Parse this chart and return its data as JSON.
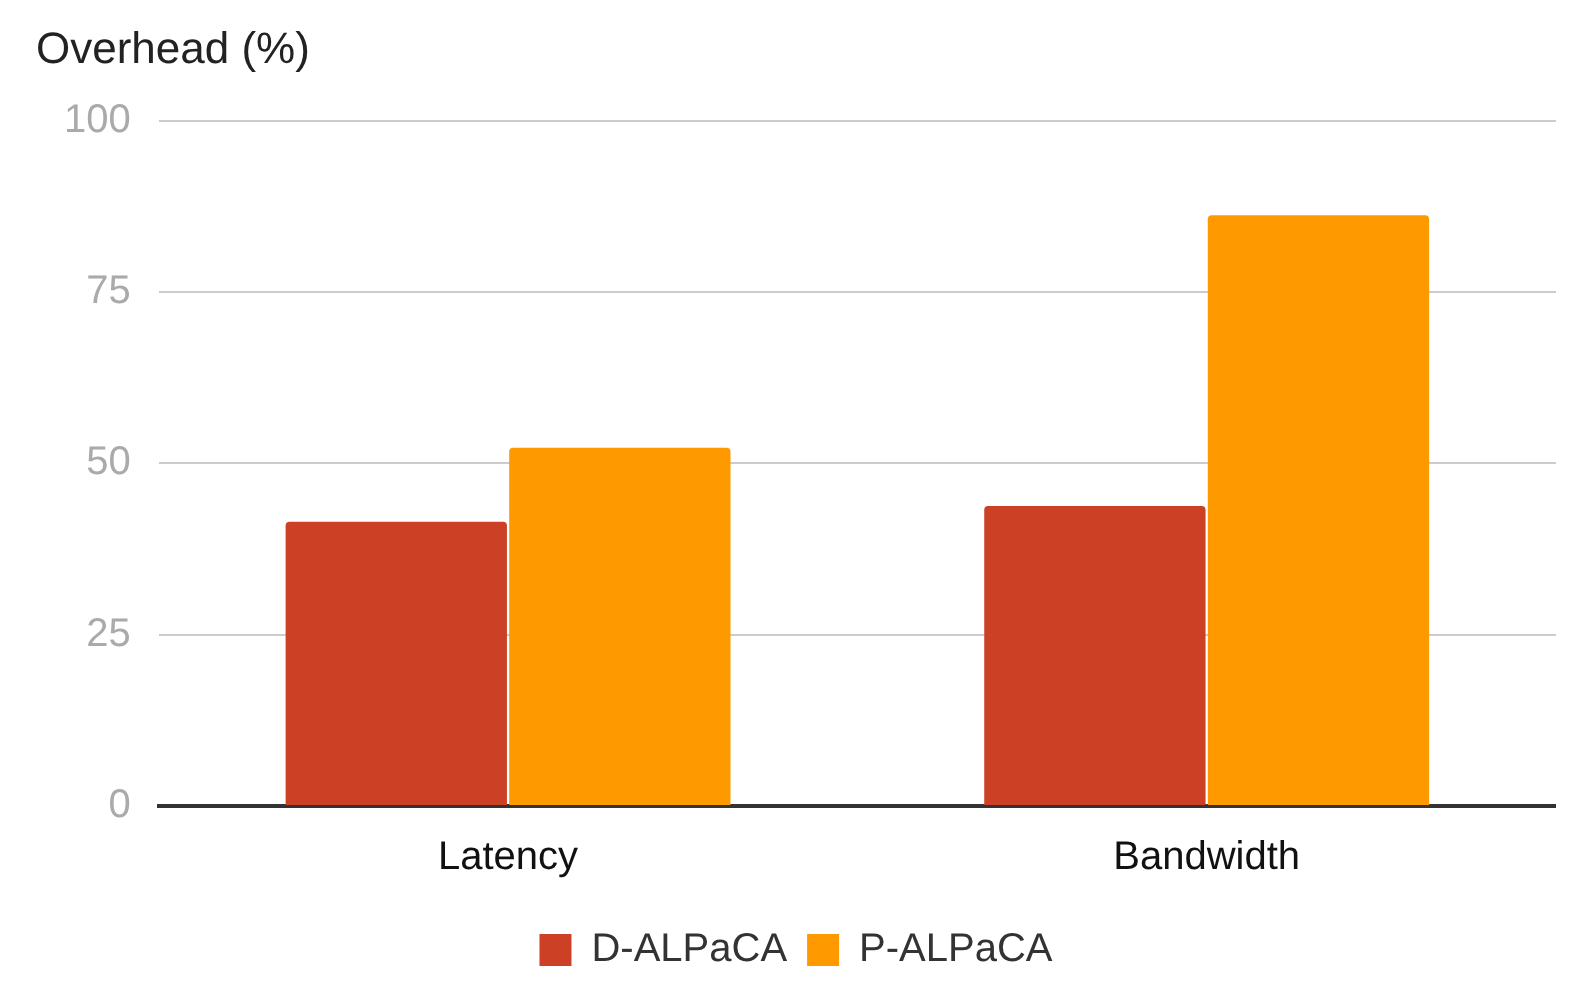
{
  "chart_data": {
    "type": "bar",
    "title": "Overhead (%)",
    "categories": [
      "Latency",
      "Bandwidth"
    ],
    "series": [
      {
        "name": "D-ALPaCA",
        "color": "#cc4125",
        "values": [
          41.5,
          43.8
        ]
      },
      {
        "name": "P-ALPaCA",
        "color": "#ff9900",
        "values": [
          52.3,
          86.2
        ]
      }
    ],
    "ylim": [
      0,
      100
    ],
    "yticks": [
      0,
      25,
      50,
      75,
      100
    ],
    "grid": "y",
    "legend": "bottom"
  }
}
